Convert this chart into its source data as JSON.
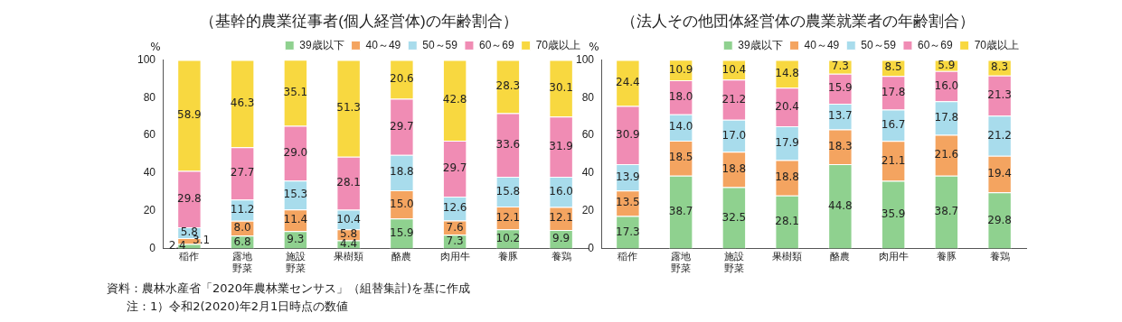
{
  "chart_data": [
    {
      "type": "bar",
      "stacked": true,
      "title": "（基幹的農業従事者(個人経営体)の年齢割合）",
      "ylabel": "%",
      "categories": [
        "稲作",
        "露地野菜",
        "施設野菜",
        "果樹類",
        "酪農",
        "肉用牛",
        "養豚",
        "養鶏"
      ],
      "ylim": [
        0,
        100
      ],
      "yticks": [
        0,
        20,
        40,
        60,
        80,
        100
      ],
      "grid": false,
      "legend": "top",
      "series": [
        {
          "name": "39歳以下",
          "color": "#8fd18f",
          "values": [
            2.4,
            6.8,
            9.3,
            4.4,
            15.9,
            7.3,
            10.2,
            9.9
          ],
          "value_labels": [
            "2.4",
            "6.8",
            "9.3",
            "4.4",
            "15.9",
            "7.3",
            "10.2",
            "9.9"
          ]
        },
        {
          "name": "40～49",
          "color": "#f4a460",
          "values": [
            3.1,
            8.0,
            11.4,
            5.8,
            15.0,
            7.6,
            12.1,
            12.1
          ],
          "value_labels": [
            "3.1",
            "8.0",
            "11.4",
            "5.8",
            "15.0",
            "7.6",
            "12.1",
            "12.1"
          ]
        },
        {
          "name": "50～59",
          "color": "#a8dcec",
          "values": [
            5.8,
            11.2,
            15.3,
            10.4,
            18.8,
            12.6,
            15.8,
            16.0
          ],
          "value_labels": [
            "5.8",
            "11.2",
            "15.3",
            "10.4",
            "18.8",
            "12.6",
            "15.8",
            "16.0"
          ]
        },
        {
          "name": "60～69",
          "color": "#f08cb4",
          "values": [
            29.8,
            27.7,
            29.0,
            28.1,
            29.7,
            29.7,
            33.6,
            31.9
          ],
          "value_labels": [
            "29.8",
            "27.7",
            "29.0",
            "28.1",
            "29.7",
            "29.7",
            "33.6",
            "31.9"
          ]
        },
        {
          "name": "70歳以上",
          "color": "#f8d840",
          "values": [
            58.9,
            46.3,
            35.1,
            51.3,
            20.6,
            42.8,
            28.3,
            30.1
          ],
          "value_labels": [
            "58.9",
            "46.3",
            "35.1",
            "51.3",
            "20.6",
            "42.8",
            "28.3",
            "30.1"
          ]
        }
      ],
      "annotations": [
        "資料：農林水産省「2020年農林業センサス」（組替集計)を基に作成",
        "注：1）令和2(2020)年2月1日時点の数値"
      ]
    },
    {
      "type": "bar",
      "stacked": true,
      "title": "（法人その他団体経営体の農業就業者の年齢割合）",
      "ylabel": "%",
      "categories": [
        "稲作",
        "露地野菜",
        "施設野菜",
        "果樹類",
        "酪農",
        "肉用牛",
        "養豚",
        "養鶏"
      ],
      "ylim": [
        0,
        100
      ],
      "yticks": [
        0,
        20,
        40,
        60,
        80,
        100
      ],
      "grid": false,
      "legend": "top",
      "series": [
        {
          "name": "39歳以下",
          "color": "#8fd18f",
          "values": [
            17.3,
            38.7,
            32.5,
            28.1,
            44.8,
            35.9,
            38.7,
            29.8
          ],
          "value_labels": [
            "17.3",
            "38.7",
            "32.5",
            "28.1",
            "44.8",
            "35.9",
            "38.7",
            "29.8"
          ]
        },
        {
          "name": "40～49",
          "color": "#f4a460",
          "values": [
            13.5,
            18.5,
            18.8,
            18.8,
            18.3,
            21.1,
            21.6,
            19.4
          ],
          "value_labels": [
            "13.5",
            "18.5",
            "18.8",
            "18.8",
            "18.3",
            "21.1",
            "21.6",
            "19.4"
          ]
        },
        {
          "name": "50～59",
          "color": "#a8dcec",
          "values": [
            13.9,
            14.0,
            17.0,
            17.9,
            13.7,
            16.7,
            17.8,
            21.2
          ],
          "value_labels": [
            "13.9",
            "14.0",
            "17.0",
            "17.9",
            "13.7",
            "16.7",
            "17.8",
            "21.2"
          ]
        },
        {
          "name": "60～69",
          "color": "#f08cb4",
          "values": [
            30.9,
            18.0,
            21.2,
            20.4,
            15.9,
            17.8,
            16.0,
            21.3
          ],
          "value_labels": [
            "30.9",
            "18.0",
            "21.2",
            "20.4",
            "15.9",
            "17.8",
            "16.0",
            "21.3"
          ]
        },
        {
          "name": "70歳以上",
          "color": "#f8d840",
          "values": [
            24.4,
            10.9,
            10.4,
            14.8,
            7.3,
            8.5,
            5.9,
            8.3
          ],
          "value_labels": [
            "24.4",
            "10.9",
            "10.4",
            "14.8",
            "7.3",
            "8.5",
            "5.9",
            "8.3"
          ]
        }
      ]
    }
  ]
}
